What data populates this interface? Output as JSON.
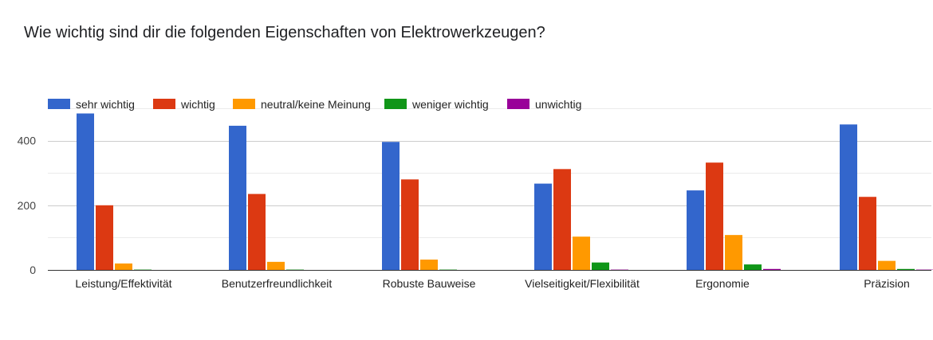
{
  "chart_data": {
    "type": "bar",
    "title": "Wie wichtig sind dir die folgenden Eigenschaften von Elektrowerkzeugen?",
    "xlabel": "",
    "ylabel": "",
    "ylim": [
      0,
      500
    ],
    "yticks": [
      0,
      200,
      400
    ],
    "grid": true,
    "legend_position": "top-left",
    "categories": [
      "Leistung/Effektivität",
      "Benutzerfreundlichkeit",
      "Robuste Bauweise",
      "Vielseitigkeit/Flexibilität",
      "Ergonomie",
      "Präzision"
    ],
    "series": [
      {
        "name": "sehr wichtig",
        "color": "#3366cc",
        "values": [
          484,
          446,
          396,
          267,
          246,
          450
        ]
      },
      {
        "name": "wichtig",
        "color": "#dc3912",
        "values": [
          200,
          235,
          280,
          312,
          332,
          226
        ]
      },
      {
        "name": "neutral/keine Meinung",
        "color": "#ff9900",
        "values": [
          20,
          25,
          32,
          103,
          108,
          28
        ]
      },
      {
        "name": "weniger wichtig",
        "color": "#109618",
        "values": [
          1,
          1,
          1,
          23,
          17,
          3
        ]
      },
      {
        "name": "unwichtig",
        "color": "#990099",
        "values": [
          0,
          0,
          0,
          1,
          3,
          1
        ]
      }
    ]
  }
}
